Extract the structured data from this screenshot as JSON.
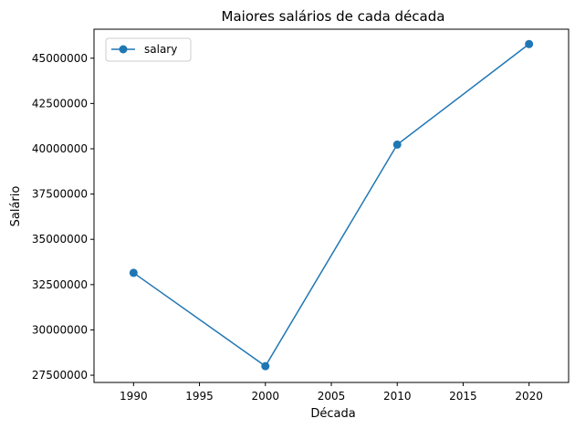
{
  "chart_data": {
    "type": "line",
    "title": "Maiores salários de cada década",
    "xlabel": "Década",
    "ylabel": "Salário",
    "xlim": [
      1987,
      2023
    ],
    "ylim": [
      27100000,
      46600000
    ],
    "xticks": [
      1990,
      1995,
      2000,
      2005,
      2010,
      2015,
      2020
    ],
    "yticks": [
      27500000,
      30000000,
      32500000,
      35000000,
      37500000,
      40000000,
      42500000,
      45000000
    ],
    "grid": false,
    "legend_position": "upper left",
    "series": [
      {
        "name": "salary",
        "color": "#1f77b4",
        "marker": "circle",
        "x": [
          1990,
          2000,
          2010,
          2020
        ],
        "y": [
          33150000,
          28000000,
          40230000,
          45780000
        ]
      }
    ]
  }
}
